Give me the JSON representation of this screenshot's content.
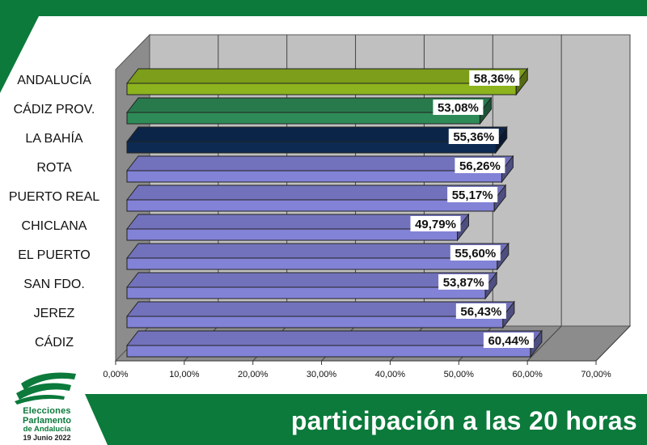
{
  "footer": {
    "title": "participación a las 20 horas"
  },
  "logo": {
    "icon": "andalucia-flag-icon",
    "line1": "Elecciones",
    "line2": "Parlamento",
    "line3": "de Andalucía",
    "line4": "19 Junio 2022"
  },
  "chart_data": {
    "type": "bar",
    "orientation": "horizontal",
    "style": "3d",
    "categories": [
      "ANDALUCÍA",
      "CÁDIZ PROV.",
      "LA BAHÍA",
      "ROTA",
      "PUERTO REAL",
      "CHICLANA",
      "EL PUERTO",
      "SAN FDO.",
      "JEREZ",
      "CÁDIZ"
    ],
    "values": [
      58.36,
      53.08,
      55.36,
      56.26,
      55.17,
      49.79,
      55.6,
      53.87,
      56.43,
      60.44
    ],
    "value_labels": [
      "58,36%",
      "53,08%",
      "55,36%",
      "56,26%",
      "55,17%",
      "49,79%",
      "55,60%",
      "53,87%",
      "56,43%",
      "60,44%"
    ],
    "xlim": [
      0,
      70
    ],
    "x_ticks": [
      "0,00%",
      "10,00%",
      "20,00%",
      "30,00%",
      "40,00%",
      "50,00%",
      "60,00%",
      "70,00%"
    ],
    "grid": true,
    "colors": {
      "ANDALUCÍA": "#8db31e",
      "CÁDIZ PROV.": "#2e8b57",
      "LA BAHÍA": "#0d2a52",
      "default": "#8282d6"
    }
  }
}
